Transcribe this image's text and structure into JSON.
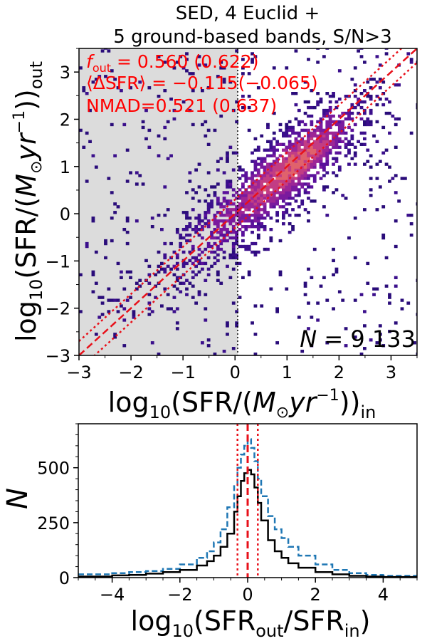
{
  "chart_data": [
    {
      "type": "heatmap",
      "title": "SED, 4 Euclid + 5 ground-based bands, S/N>3",
      "title_lines": [
        "SED, 4 Euclid +",
        "5 ground-based bands, S/N>3"
      ],
      "xlabel": "log10(SFR/(M⊙yr−1))in",
      "ylabel": "log10(SFR/(M⊙yr−1))out",
      "xlim": [
        -3,
        3.5
      ],
      "ylim": [
        -3,
        3.5
      ],
      "xticks": [
        -3,
        -2,
        -1,
        0,
        1,
        2,
        3
      ],
      "yticks": [
        -3,
        -2,
        -1,
        0,
        1,
        2,
        3
      ],
      "xtick_labels": [
        "−3",
        "−2",
        "−1",
        "0",
        "1",
        "2",
        "3"
      ],
      "ytick_labels": [
        "−3",
        "−2",
        "−1",
        "0",
        "1",
        "2",
        "3"
      ],
      "shaded_region": {
        "x_from": -3,
        "x_to": 0,
        "color": "#dcdcdc"
      },
      "reference_lines": [
        {
          "style": "dashed",
          "color": "#e8101a",
          "relation": "y = x"
        },
        {
          "style": "dotted",
          "color": "#e8101a",
          "relation": "y = x + 0.3"
        },
        {
          "style": "dotted",
          "color": "#e8101a",
          "relation": "y = x - 0.3"
        }
      ],
      "annotations": [
        {
          "text": "fout = 0.560 (0.622)",
          "color": "#ff0000"
        },
        {
          "text": "⟨ΔSFR⟩ = −0.115(−0.065)",
          "color": "#ff0000"
        },
        {
          "text": "NMAD=0.521 (0.637)",
          "color": "#ff0000"
        },
        {
          "text": "N = 9 133",
          "color": "#000000"
        }
      ],
      "density_clusters": [
        {
          "x": 0.9,
          "y": 0.8,
          "sigma": 0.75,
          "weight": 0.55
        },
        {
          "x": -0.5,
          "y": -0.5,
          "sigma": 0.7,
          "weight": 0.2
        },
        {
          "x": 1.5,
          "y": 1.4,
          "sigma": 0.5,
          "weight": 0.25
        }
      ],
      "n_points": 9133
    },
    {
      "type": "line",
      "title": "",
      "xlabel": "log10(SFRout/SFRin)",
      "ylabel": "N",
      "xlim": [
        -5,
        5
      ],
      "ylim": [
        0,
        700
      ],
      "xticks": [
        -4,
        -2,
        0,
        2,
        4
      ],
      "yticks": [
        0,
        250,
        500
      ],
      "xtick_labels": [
        "−4",
        "−2",
        "0",
        "2",
        "4"
      ],
      "ytick_labels": [
        "0",
        "250",
        "500"
      ],
      "series": [
        {
          "name": "black solid histogram",
          "color": "#000000",
          "style": "solid",
          "x": [
            -5.0,
            -4.5,
            -4.0,
            -3.5,
            -3.0,
            -2.5,
            -2.0,
            -1.5,
            -1.2,
            -1.0,
            -0.8,
            -0.6,
            -0.4,
            -0.3,
            -0.2,
            -0.1,
            0.0,
            0.1,
            0.2,
            0.3,
            0.4,
            0.6,
            0.8,
            1.0,
            1.2,
            1.5,
            2.0,
            2.5,
            3.0,
            3.5,
            4.0,
            5.0
          ],
          "values": [
            5,
            5,
            10,
            12,
            18,
            25,
            35,
            55,
            75,
            100,
            140,
            200,
            300,
            370,
            440,
            475,
            490,
            470,
            410,
            340,
            260,
            170,
            120,
            90,
            65,
            45,
            25,
            15,
            8,
            5,
            3,
            2
          ]
        },
        {
          "name": "blue dashed histogram",
          "color": "#1f77b4",
          "style": "dashed",
          "x": [
            -5.0,
            -4.5,
            -4.0,
            -3.5,
            -3.0,
            -2.5,
            -2.0,
            -1.5,
            -1.2,
            -1.0,
            -0.8,
            -0.6,
            -0.4,
            -0.3,
            -0.2,
            -0.1,
            0.0,
            0.1,
            0.2,
            0.3,
            0.4,
            0.6,
            0.8,
            1.0,
            1.2,
            1.5,
            2.0,
            2.5,
            3.0,
            3.5,
            4.0,
            5.0
          ],
          "values": [
            15,
            15,
            20,
            25,
            30,
            40,
            60,
            90,
            120,
            160,
            220,
            320,
            420,
            500,
            560,
            600,
            630,
            590,
            530,
            450,
            370,
            280,
            220,
            180,
            140,
            100,
            60,
            35,
            20,
            12,
            8,
            5
          ]
        }
      ],
      "reference_lines": [
        {
          "style": "dashed",
          "color": "#e8101a",
          "x": 0.0
        },
        {
          "style": "dotted",
          "color": "#e8101a",
          "x": -0.3
        },
        {
          "style": "dotted",
          "color": "#e8101a",
          "x": 0.3
        }
      ]
    }
  ]
}
